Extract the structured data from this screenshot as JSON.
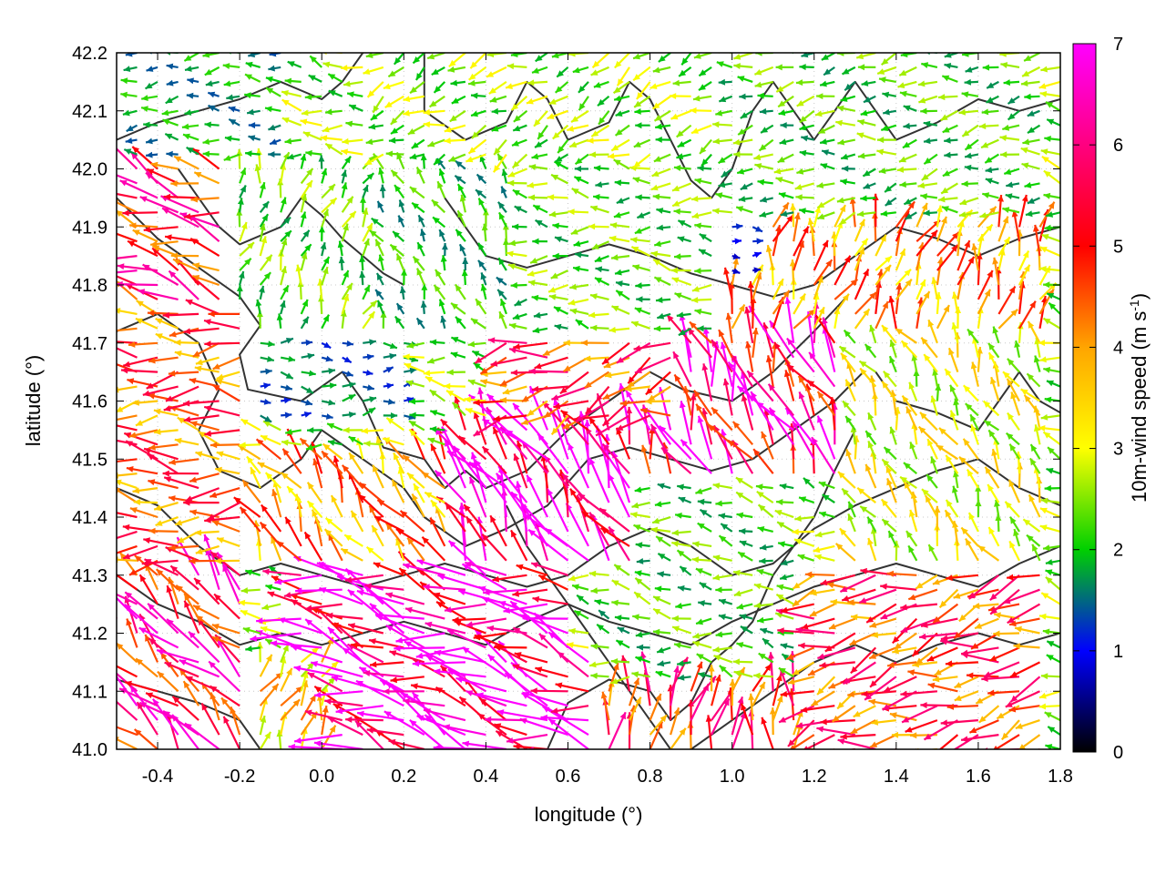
{
  "chart_data": {
    "type": "quiver",
    "xlabel": "longitude (°)",
    "ylabel": "latitude (°)",
    "xlim": [
      -0.5,
      1.8
    ],
    "ylim": [
      41.0,
      42.2
    ],
    "x_ticks": [
      "-0.4",
      "-0.2",
      "0.0",
      "0.2",
      "0.4",
      "0.6",
      "0.8",
      "1.0",
      "1.2",
      "1.4",
      "1.6",
      "1.8"
    ],
    "x_tick_values": [
      -0.4,
      -0.2,
      0.0,
      0.2,
      0.4,
      0.6,
      0.8,
      1.0,
      1.2,
      1.4,
      1.6,
      1.8
    ],
    "y_ticks": [
      "41.0",
      "41.1",
      "41.2",
      "41.3",
      "41.4",
      "41.5",
      "41.6",
      "41.7",
      "41.8",
      "41.9",
      "42.0",
      "42.1",
      "42.2"
    ],
    "y_tick_values": [
      41.0,
      41.1,
      41.2,
      41.3,
      41.4,
      41.5,
      41.6,
      41.7,
      41.8,
      41.9,
      42.0,
      42.1,
      42.2
    ],
    "grid": true,
    "colorbar": {
      "label": "10m-wind speed (m s",
      "label_superscript": "-1",
      "label_close": ")",
      "ticks": [
        "0",
        "1",
        "2",
        "3",
        "4",
        "5",
        "6",
        "7"
      ],
      "tick_values": [
        0,
        1,
        2,
        3,
        4,
        5,
        6,
        7
      ],
      "range": [
        0,
        7
      ],
      "colors": [
        "#000000",
        "#0000ff",
        "#00d000",
        "#ffff00",
        "#ffa500",
        "#ff0000",
        "#ff00ff"
      ]
    },
    "contour_color": "#333333",
    "regions": [
      {
        "lon": [
          -0.5,
          -0.25
        ],
        "lat": [
          41.75,
          42.0
        ],
        "u": -4.8,
        "v": 1.8,
        "speed": 5.2
      },
      {
        "lon": [
          -0.5,
          -0.2
        ],
        "lat": [
          41.3,
          41.75
        ],
        "u": -4.5,
        "v": 0.2,
        "speed": 4.5
      },
      {
        "lon": [
          -0.5,
          -0.2
        ],
        "lat": [
          41.0,
          41.3
        ],
        "u": -2.5,
        "v": 2.5,
        "speed": 5.5
      },
      {
        "lon": [
          -0.5,
          -0.1
        ],
        "lat": [
          42.0,
          42.2
        ],
        "u": -3.5,
        "v": 0.0,
        "speed": 1.8
      },
      {
        "lon": [
          -0.25,
          0.1
        ],
        "lat": [
          41.7,
          42.0
        ],
        "u": 0.5,
        "v": 1.5,
        "speed": 2.3
      },
      {
        "lon": [
          -0.2,
          0.2
        ],
        "lat": [
          41.55,
          41.7
        ],
        "u": 2.0,
        "v": 0.0,
        "speed": 1.5
      },
      {
        "lon": [
          0.0,
          0.45
        ],
        "lat": [
          41.7,
          42.0
        ],
        "u": -0.5,
        "v": 1.0,
        "speed": 2.0
      },
      {
        "lon": [
          0.45,
          1.0
        ],
        "lat": [
          41.7,
          42.0
        ],
        "u": -3.5,
        "v": 0.2,
        "speed": 2.3
      },
      {
        "lon": [
          0.1,
          1.0
        ],
        "lat": [
          42.0,
          42.2
        ],
        "u": -2.0,
        "v": -1.0,
        "speed": 2.5
      },
      {
        "lon": [
          1.0,
          1.8
        ],
        "lat": [
          41.9,
          42.2
        ],
        "u": -3.0,
        "v": -0.5,
        "speed": 2.2
      },
      {
        "lon": [
          0.8,
          1.1
        ],
        "lat": [
          41.8,
          41.95
        ],
        "u": 2.5,
        "v": 0.0,
        "speed": 1.0
      },
      {
        "lon": [
          1.0,
          1.8
        ],
        "lat": [
          41.7,
          41.9
        ],
        "u": 1.0,
        "v": 3.0,
        "speed": 4.0
      },
      {
        "lon": [
          0.4,
          0.9
        ],
        "lat": [
          41.55,
          41.7
        ],
        "u": -4.5,
        "v": -1.5,
        "speed": 4.8
      },
      {
        "lon": [
          0.3,
          0.8
        ],
        "lat": [
          41.3,
          41.55
        ],
        "u": -2.0,
        "v": 3.5,
        "speed": 6.8
      },
      {
        "lon": [
          0.8,
          1.3
        ],
        "lat": [
          41.45,
          41.75
        ],
        "u": -1.5,
        "v": 3.5,
        "speed": 5.8
      },
      {
        "lon": [
          1.3,
          1.8
        ],
        "lat": [
          41.3,
          41.7
        ],
        "u": -1.0,
        "v": 2.0,
        "speed": 3.0
      },
      {
        "lon": [
          -0.2,
          0.3
        ],
        "lat": [
          41.3,
          41.5
        ],
        "u": -2.0,
        "v": 3.0,
        "speed": 4.0
      },
      {
        "lon": [
          -0.1,
          0.6
        ],
        "lat": [
          41.15,
          41.3
        ],
        "u": -5.0,
        "v": 1.5,
        "speed": 6.5
      },
      {
        "lon": [
          0.0,
          0.7
        ],
        "lat": [
          41.0,
          41.15
        ],
        "u": -5.0,
        "v": 2.0,
        "speed": 6.8
      },
      {
        "lon": [
          0.7,
          1.2
        ],
        "lat": [
          41.1,
          41.45
        ],
        "u": -2.5,
        "v": 0.5,
        "speed": 2.2
      },
      {
        "lon": [
          1.2,
          1.8
        ],
        "lat": [
          41.0,
          41.3
        ],
        "u": -5.0,
        "v": -1.5,
        "speed": 4.8
      },
      {
        "lon": [
          -0.2,
          0.1
        ],
        "lat": [
          41.0,
          41.15
        ],
        "u": 1.0,
        "v": 2.5,
        "speed": 3.5
      },
      {
        "lon": [
          0.7,
          1.2
        ],
        "lat": [
          41.0,
          41.1
        ],
        "u": 0.5,
        "v": 3.0,
        "speed": 5.0
      }
    ],
    "contours": [
      [
        [
          -0.5,
          41.95
        ],
        [
          -0.4,
          41.88
        ],
        [
          -0.3,
          41.83
        ],
        [
          -0.2,
          41.78
        ],
        [
          -0.15,
          41.73
        ],
        [
          -0.2,
          41.68
        ],
        [
          -0.18,
          41.62
        ],
        [
          -0.05,
          41.6
        ],
        [
          0.05,
          41.65
        ],
        [
          0.1,
          41.6
        ],
        [
          0.15,
          41.52
        ],
        [
          0.25,
          41.5
        ],
        [
          0.3,
          41.45
        ],
        [
          0.35,
          41.48
        ],
        [
          0.4,
          41.45
        ],
        [
          0.5,
          41.48
        ],
        [
          0.6,
          41.55
        ],
        [
          0.7,
          41.6
        ],
        [
          0.8,
          41.65
        ],
        [
          0.88,
          41.62
        ],
        [
          1.0,
          41.6
        ],
        [
          1.1,
          41.65
        ],
        [
          1.2,
          41.72
        ],
        [
          1.28,
          41.78
        ]
      ],
      [
        [
          -0.5,
          41.72
        ],
        [
          -0.4,
          41.75
        ],
        [
          -0.3,
          41.7
        ],
        [
          -0.25,
          41.62
        ],
        [
          -0.3,
          41.55
        ],
        [
          -0.25,
          41.48
        ],
        [
          -0.15,
          41.45
        ],
        [
          -0.05,
          41.5
        ],
        [
          0.0,
          41.55
        ],
        [
          0.1,
          41.5
        ],
        [
          0.2,
          41.45
        ],
        [
          0.25,
          41.4
        ],
        [
          0.35,
          41.35
        ],
        [
          0.45,
          41.38
        ],
        [
          0.55,
          41.42
        ],
        [
          0.65,
          41.5
        ],
        [
          0.75,
          41.52
        ],
        [
          0.85,
          41.5
        ],
        [
          0.95,
          41.48
        ],
        [
          1.05,
          41.5
        ],
        [
          1.15,
          41.55
        ],
        [
          1.25,
          41.6
        ],
        [
          1.32,
          41.65
        ]
      ],
      [
        [
          -0.5,
          41.45
        ],
        [
          -0.4,
          41.42
        ],
        [
          -0.3,
          41.35
        ],
        [
          -0.2,
          41.3
        ],
        [
          -0.1,
          41.32
        ],
        [
          0.0,
          41.3
        ],
        [
          0.1,
          41.28
        ],
        [
          0.2,
          41.3
        ],
        [
          0.3,
          41.32
        ],
        [
          0.4,
          41.3
        ],
        [
          0.5,
          41.28
        ],
        [
          0.6,
          41.3
        ],
        [
          0.7,
          41.35
        ],
        [
          0.8,
          41.38
        ],
        [
          0.9,
          41.35
        ],
        [
          1.0,
          41.3
        ],
        [
          1.1,
          41.32
        ],
        [
          1.2,
          41.38
        ],
        [
          1.3,
          41.42
        ],
        [
          1.4,
          41.45
        ],
        [
          1.5,
          41.48
        ],
        [
          1.6,
          41.5
        ],
        [
          1.7,
          41.45
        ],
        [
          1.8,
          41.42
        ]
      ],
      [
        [
          -0.5,
          41.3
        ],
        [
          -0.4,
          41.25
        ],
        [
          -0.3,
          41.22
        ],
        [
          -0.2,
          41.18
        ],
        [
          -0.1,
          41.2
        ],
        [
          0.0,
          41.18
        ],
        [
          0.1,
          41.2
        ],
        [
          0.2,
          41.22
        ],
        [
          0.3,
          41.2
        ],
        [
          0.4,
          41.18
        ],
        [
          0.5,
          41.22
        ],
        [
          0.6,
          41.25
        ],
        [
          0.7,
          41.22
        ],
        [
          0.8,
          41.2
        ],
        [
          0.9,
          41.18
        ],
        [
          1.0,
          41.22
        ],
        [
          1.1,
          41.25
        ],
        [
          1.2,
          41.28
        ],
        [
          1.3,
          41.3
        ],
        [
          1.4,
          41.32
        ],
        [
          1.5,
          41.3
        ],
        [
          1.6,
          41.28
        ],
        [
          1.7,
          41.32
        ],
        [
          1.8,
          41.35
        ]
      ],
      [
        [
          -0.5,
          41.12
        ],
        [
          -0.4,
          41.1
        ],
        [
          -0.3,
          41.08
        ],
        [
          -0.2,
          41.05
        ],
        [
          -0.15,
          41.0
        ]
      ],
      [
        [
          0.55,
          41.0
        ],
        [
          0.6,
          41.08
        ],
        [
          0.7,
          41.12
        ],
        [
          0.8,
          41.1
        ],
        [
          0.85,
          41.05
        ],
        [
          0.9,
          41.08
        ],
        [
          0.95,
          41.15
        ],
        [
          1.0,
          41.18
        ],
        [
          1.05,
          41.22
        ],
        [
          1.1,
          41.3
        ],
        [
          1.15,
          41.35
        ],
        [
          1.2,
          41.4
        ],
        [
          1.25,
          41.48
        ],
        [
          1.3,
          41.55
        ]
      ],
      [
        [
          0.9,
          41.0
        ],
        [
          1.0,
          41.05
        ],
        [
          1.1,
          41.1
        ],
        [
          1.2,
          41.15
        ],
        [
          1.3,
          41.18
        ],
        [
          1.4,
          41.15
        ],
        [
          1.5,
          41.18
        ],
        [
          1.6,
          41.2
        ],
        [
          1.7,
          41.18
        ],
        [
          1.8,
          41.2
        ]
      ],
      [
        [
          0.25,
          42.2
        ],
        [
          0.25,
          42.1
        ],
        [
          0.35,
          42.05
        ],
        [
          0.45,
          42.08
        ],
        [
          0.5,
          42.15
        ],
        [
          0.55,
          42.12
        ],
        [
          0.6,
          42.05
        ],
        [
          0.7,
          42.08
        ],
        [
          0.75,
          42.15
        ],
        [
          0.8,
          42.12
        ],
        [
          0.85,
          42.05
        ],
        [
          0.9,
          41.98
        ],
        [
          0.95,
          41.95
        ],
        [
          1.0,
          42.0
        ],
        [
          1.05,
          42.1
        ],
        [
          1.1,
          42.15
        ],
        [
          1.15,
          42.1
        ],
        [
          1.2,
          42.05
        ],
        [
          1.25,
          42.1
        ],
        [
          1.3,
          42.15
        ],
        [
          1.35,
          42.1
        ],
        [
          1.4,
          42.05
        ],
        [
          1.5,
          42.08
        ],
        [
          1.6,
          42.12
        ],
        [
          1.7,
          42.1
        ],
        [
          1.8,
          42.12
        ]
      ],
      [
        [
          -0.5,
          42.05
        ],
        [
          -0.4,
          42.08
        ],
        [
          -0.3,
          42.1
        ],
        [
          -0.2,
          42.12
        ],
        [
          -0.1,
          42.15
        ],
        [
          0.0,
          42.12
        ],
        [
          0.05,
          42.15
        ],
        [
          0.1,
          42.2
        ]
      ],
      [
        [
          0.3,
          41.95
        ],
        [
          0.35,
          41.9
        ],
        [
          0.4,
          41.85
        ],
        [
          0.5,
          41.83
        ],
        [
          0.6,
          41.85
        ],
        [
          0.7,
          41.87
        ],
        [
          0.8,
          41.85
        ],
        [
          0.9,
          41.82
        ],
        [
          1.0,
          41.8
        ],
        [
          1.1,
          41.78
        ],
        [
          1.2,
          41.8
        ],
        [
          1.3,
          41.85
        ],
        [
          1.4,
          41.9
        ],
        [
          1.5,
          41.88
        ],
        [
          1.6,
          41.85
        ],
        [
          1.7,
          41.88
        ],
        [
          1.8,
          41.9
        ]
      ],
      [
        [
          -0.35,
          42.0
        ],
        [
          -0.3,
          41.95
        ],
        [
          -0.25,
          41.9
        ],
        [
          -0.2,
          41.87
        ],
        [
          -0.1,
          41.9
        ],
        [
          -0.05,
          41.95
        ],
        [
          0.0,
          41.92
        ],
        [
          0.05,
          41.88
        ],
        [
          0.1,
          41.85
        ],
        [
          0.15,
          41.82
        ],
        [
          0.2,
          41.8
        ]
      ],
      [
        [
          1.35,
          41.65
        ],
        [
          1.4,
          41.6
        ],
        [
          1.5,
          41.58
        ],
        [
          1.6,
          41.55
        ],
        [
          1.65,
          41.6
        ],
        [
          1.7,
          41.65
        ],
        [
          1.75,
          41.6
        ],
        [
          1.8,
          41.58
        ]
      ],
      [
        [
          0.45,
          41.42
        ],
        [
          0.5,
          41.35
        ],
        [
          0.55,
          41.3
        ],
        [
          0.6,
          41.25
        ],
        [
          0.65,
          41.2
        ],
        [
          0.7,
          41.15
        ],
        [
          0.75,
          41.1
        ],
        [
          0.8,
          41.05
        ],
        [
          0.85,
          41.0
        ]
      ]
    ]
  }
}
